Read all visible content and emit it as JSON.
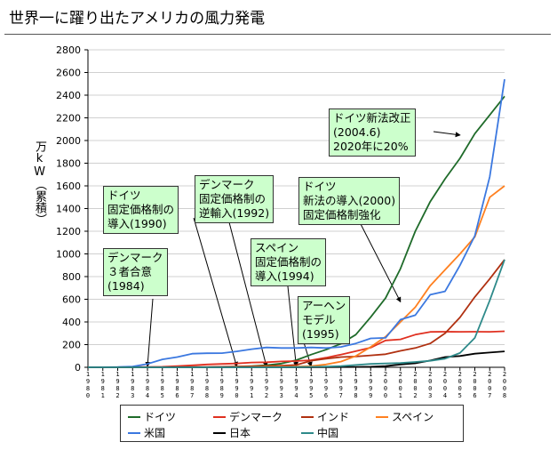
{
  "title": "世界一に躍り出たアメリカの風力発電",
  "chart_data": {
    "type": "line",
    "ylabel": "万kW（累積）",
    "ylim": [
      0,
      2800
    ],
    "yticks": [
      0,
      200,
      400,
      600,
      800,
      1000,
      1200,
      1400,
      1600,
      1800,
      2000,
      2200,
      2400,
      2600,
      2800
    ],
    "x": [
      1980,
      1981,
      1982,
      1983,
      1984,
      1985,
      1986,
      1987,
      1988,
      1989,
      1990,
      1991,
      1992,
      1993,
      1994,
      1995,
      1996,
      1997,
      1998,
      1999,
      2000,
      2001,
      2002,
      2003,
      2004,
      2005,
      2006,
      2007,
      2008
    ],
    "x_tick_labels": [
      "1980",
      "1981",
      "1982",
      "1983",
      "1984",
      "1985",
      "1986",
      "1987",
      "1988",
      "1989",
      "1990",
      "1991",
      "1992",
      "1993",
      "1994",
      "1995",
      "1996",
      "1997",
      "1998",
      "1999",
      "2000",
      "2001",
      "2002",
      "2003",
      "2004",
      "2005",
      "2006",
      "2007",
      "2008"
    ],
    "series": [
      {
        "name": "ドイツ",
        "color": "#1f6b2a",
        "values": [
          0,
          0,
          0,
          0,
          0,
          0,
          0,
          0,
          1,
          2,
          6,
          11,
          18,
          33,
          63,
          112,
          155,
          208,
          288,
          442,
          610,
          870,
          1200,
          1461,
          1662,
          1843,
          2060,
          2225,
          2390
        ]
      },
      {
        "name": "デンマーク",
        "color": "#e03020",
        "values": [
          0,
          0,
          1,
          2,
          3,
          5,
          10,
          17,
          25,
          30,
          34,
          42,
          45,
          52,
          55,
          63,
          85,
          112,
          142,
          173,
          237,
          246,
          288,
          312,
          314,
          313,
          314,
          313,
          318
        ]
      },
      {
        "name": "インド",
        "color": "#b03010",
        "values": [
          0,
          0,
          0,
          0,
          0,
          0,
          1,
          2,
          3,
          5,
          7,
          9,
          12,
          15,
          20,
          58,
          75,
          90,
          95,
          105,
          115,
          145,
          170,
          210,
          300,
          440,
          620,
          780,
          950
        ]
      },
      {
        "name": "スペイン",
        "color": "#ff8020",
        "values": [
          0,
          0,
          0,
          0,
          0,
          0,
          0,
          0,
          0,
          1,
          2,
          3,
          5,
          5,
          7,
          10,
          25,
          50,
          100,
          180,
          270,
          400,
          530,
          720,
          860,
          1000,
          1150,
          1500,
          1600
        ]
      },
      {
        "name": "米国",
        "color": "#3b78e0",
        "values": [
          1,
          1,
          2,
          7,
          30,
          70,
          90,
          120,
          124,
          125,
          140,
          160,
          175,
          170,
          170,
          175,
          170,
          180,
          210,
          255,
          260,
          420,
          460,
          640,
          670,
          900,
          1160,
          1680,
          2540
        ]
      },
      {
        "name": "日本",
        "color": "#000000",
        "values": [
          0,
          0,
          0,
          0,
          0,
          0,
          0,
          0,
          0,
          0,
          0,
          0,
          0,
          0,
          0,
          0,
          1,
          2,
          3,
          5,
          10,
          25,
          35,
          60,
          90,
          100,
          120,
          130,
          140
        ]
      },
      {
        "name": "中国",
        "color": "#2e8a8a",
        "values": [
          0,
          0,
          0,
          0,
          0,
          0,
          0,
          0,
          0,
          0,
          0,
          0,
          0,
          1,
          2,
          4,
          6,
          10,
          20,
          30,
          34,
          38,
          47,
          57,
          76,
          126,
          260,
          590,
          950
        ]
      }
    ]
  },
  "annotations": [
    {
      "id": "germany-reform",
      "text": "ドイツ新法改正\n(2004.6)\n2020年に20%",
      "target_year": 2005,
      "target_value": 2040
    },
    {
      "id": "germany-new-law",
      "text": "ドイツ\n新法の導入(2000)\n固定価格制強化",
      "target_year": 2001,
      "target_value": 570
    },
    {
      "id": "denmark-reverse",
      "text": "デンマーク\n固定価格制の\n逆輸入(1992)",
      "target_year": 1992,
      "target_value": 0
    },
    {
      "id": "germany-1990",
      "text": "ドイツ\n固定価格制の\n導入(1990)",
      "target_year": 1990,
      "target_value": 0
    },
    {
      "id": "spain-1994",
      "text": "スペイン\n固定価格制の\n導入(1994)",
      "target_year": 1994,
      "target_value": 0
    },
    {
      "id": "denmark-1984",
      "text": "デンマーク\n３者合意\n(1984)",
      "target_year": 1984,
      "target_value": 0
    },
    {
      "id": "aachen-1995",
      "text": "アーヘン\nモデル\n(1995)",
      "target_year": 1995,
      "target_value": 0
    }
  ]
}
